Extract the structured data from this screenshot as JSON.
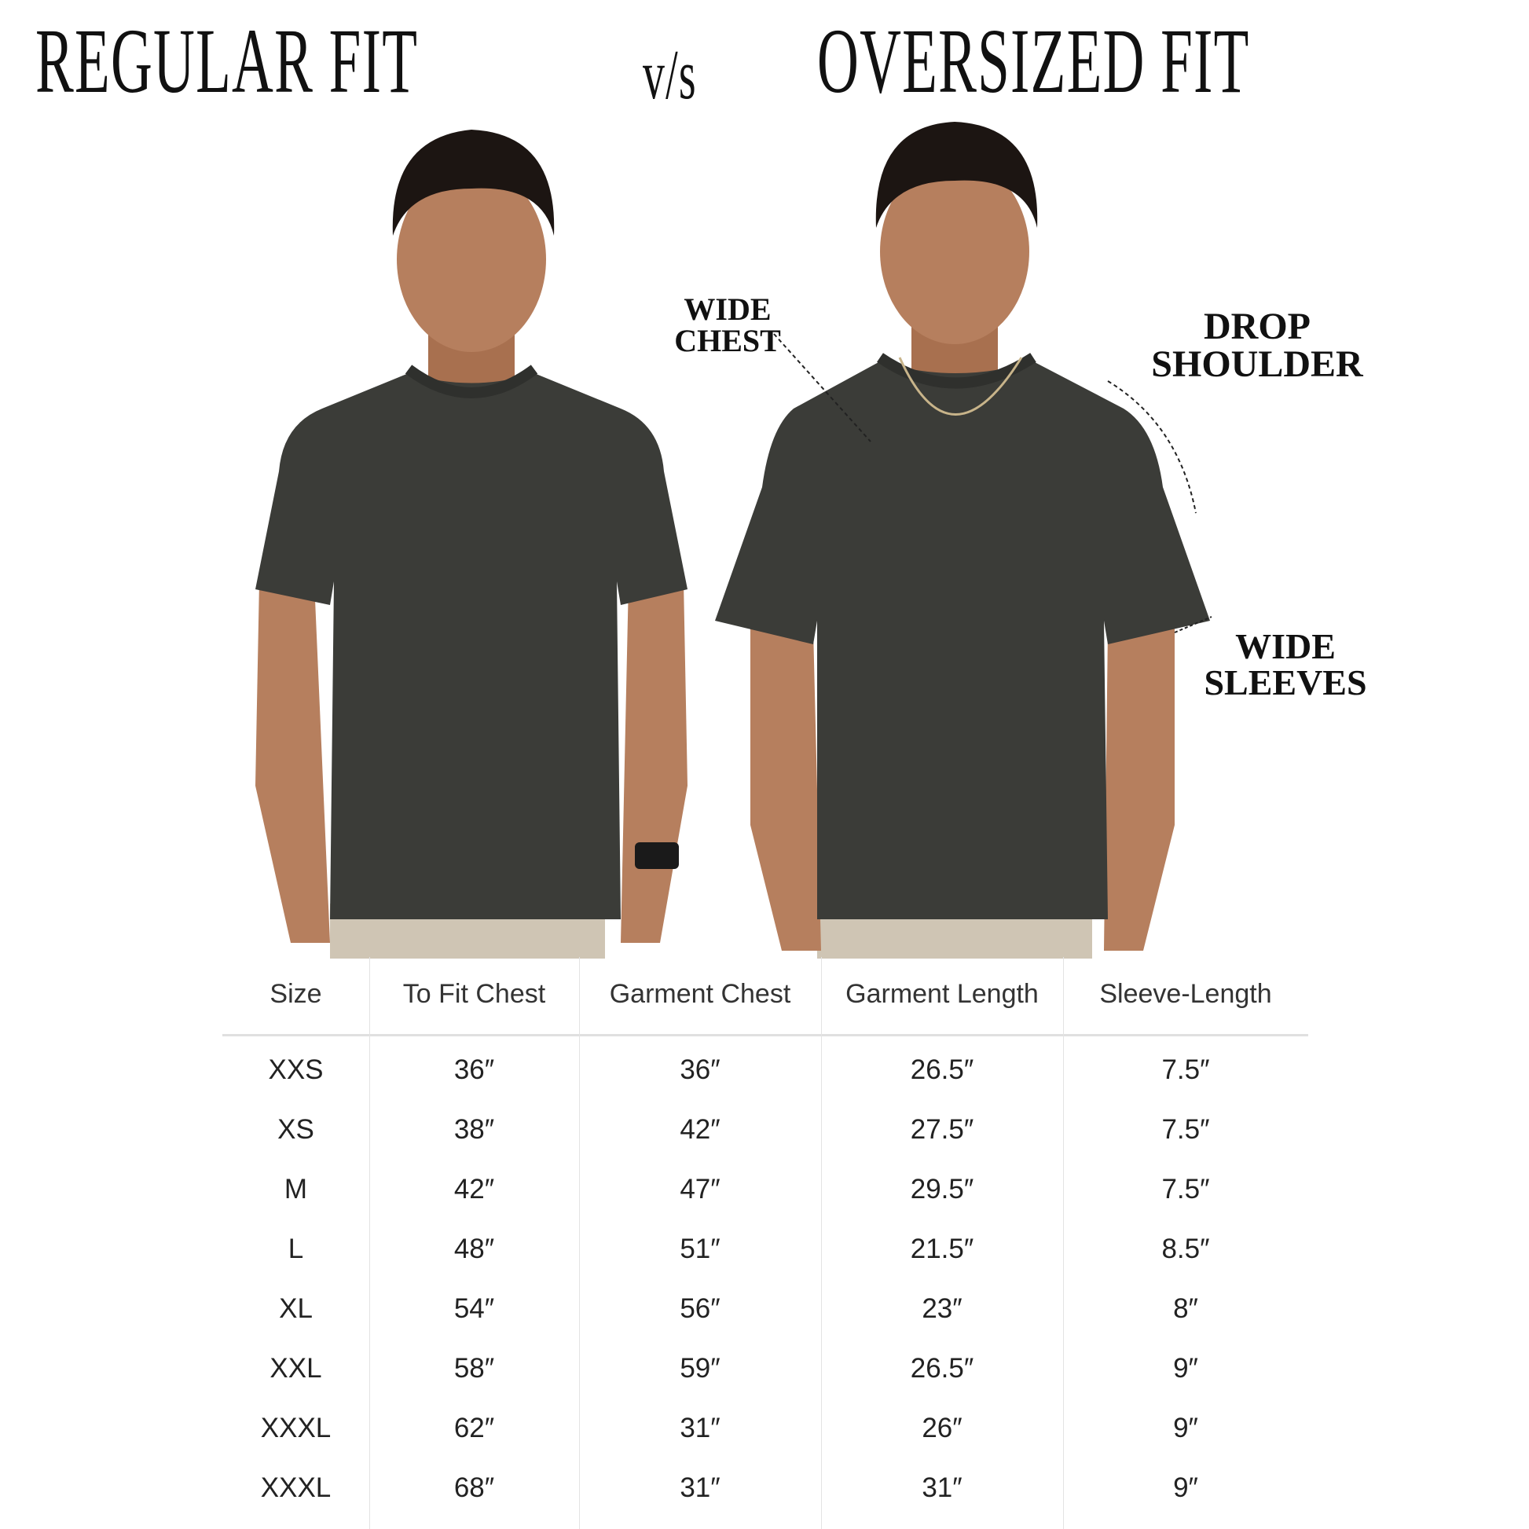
{
  "title": {
    "left": "REGULAR FIT",
    "vs": "v/s",
    "right": "OVERSIZED FIT"
  },
  "annotations": {
    "wide_chest": [
      "WIDE",
      "CHEST"
    ],
    "drop_shoulder": [
      "DROP",
      "SHOULDER"
    ],
    "wide_sleeves": [
      "WIDE",
      "SLEEVES"
    ]
  },
  "colors": {
    "tshirt": "#3b3c38",
    "skin": "#b67f5e",
    "hair": "#1c1512",
    "pants": "#cfc5b4"
  },
  "table": {
    "headers": [
      "Size",
      "To Fit Chest",
      "Garment Chest",
      "Garment Length",
      "Sleeve-Length"
    ],
    "rows": [
      [
        "XXS",
        "36″",
        "36″",
        "26.5″",
        "7.5″"
      ],
      [
        "XS",
        "38″",
        "42″",
        "27.5″",
        "7.5″"
      ],
      [
        "M",
        "42″",
        "47″",
        "29.5″",
        "7.5″"
      ],
      [
        "L",
        "48″",
        "51″",
        "21.5″",
        "8.5″"
      ],
      [
        "XL",
        "54″",
        "56″",
        "23″",
        "8″"
      ],
      [
        "XXL",
        "58″",
        "59″",
        "26.5″",
        "9″"
      ],
      [
        "XXXL",
        "62″",
        "31″",
        "26″",
        "9″"
      ],
      [
        "XXXL",
        "68″",
        "31″",
        "31″",
        "9″"
      ]
    ]
  }
}
